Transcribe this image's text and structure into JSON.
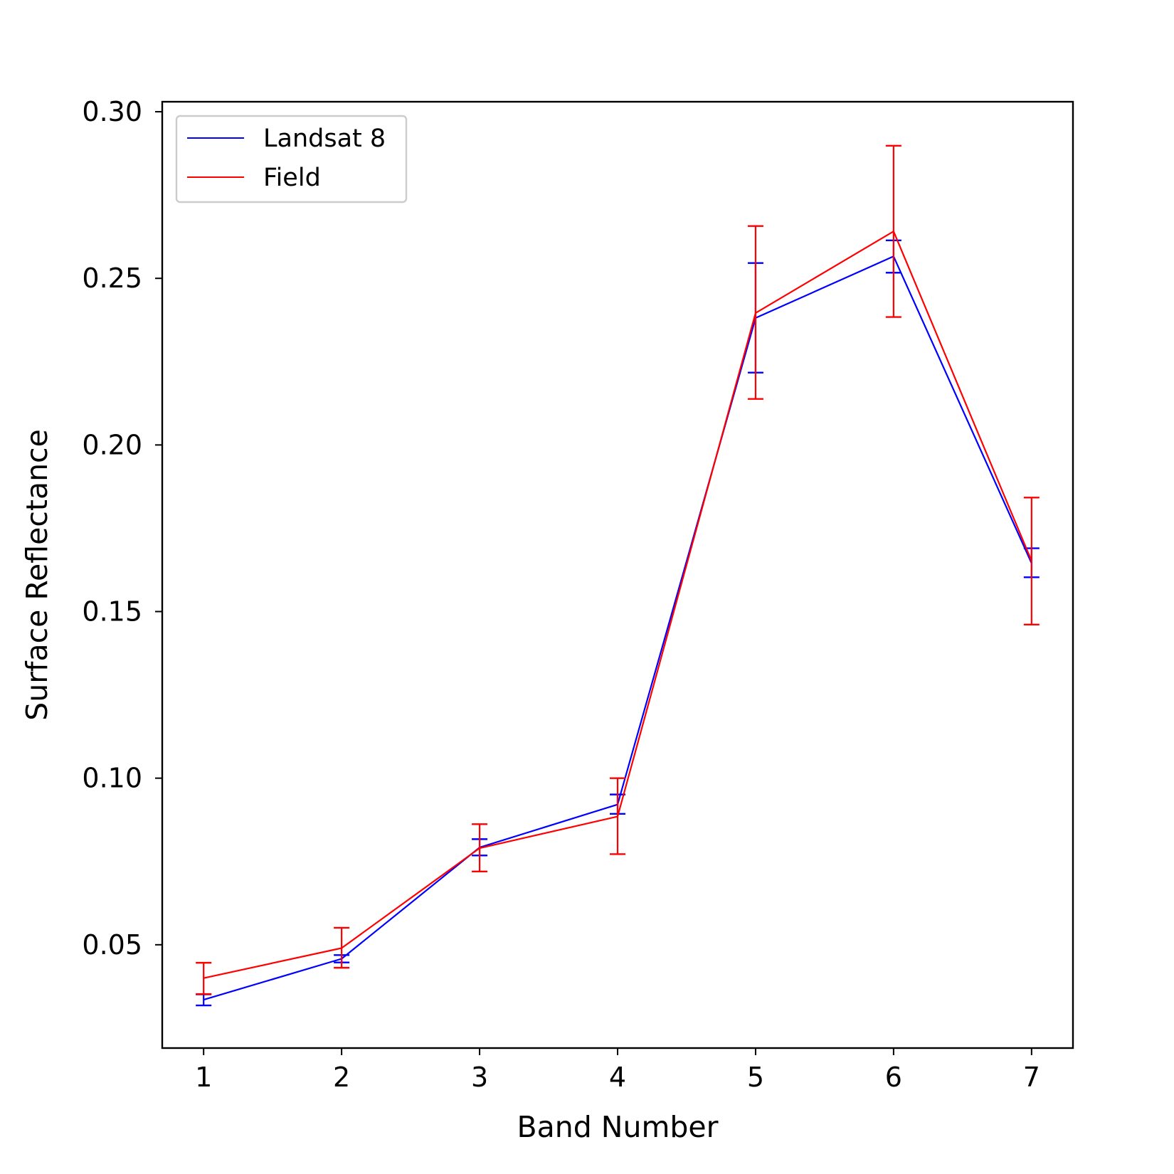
{
  "chart_data": {
    "type": "line",
    "xlabel": "Band Number",
    "ylabel": "Surface Reflectance",
    "xlim": [
      0.7,
      7.3
    ],
    "ylim": [
      0.019,
      0.303
    ],
    "x_ticks": [
      "1",
      "2",
      "3",
      "4",
      "5",
      "6",
      "7"
    ],
    "y_ticks": [
      "0.05",
      "0.10",
      "0.15",
      "0.20",
      "0.25",
      "0.30"
    ],
    "x": [
      1,
      2,
      3,
      4,
      5,
      6,
      7
    ],
    "grid": false,
    "legend_position": "upper-left",
    "series": [
      {
        "name": "Landsat 8",
        "color": "#0000ff",
        "values": [
          0.0335,
          0.0458,
          0.0792,
          0.0921,
          0.2381,
          0.2566,
          0.1645
        ],
        "err_lower": [
          0.0318,
          0.0447,
          0.0768,
          0.0893,
          0.2217,
          0.2517,
          0.1603
        ],
        "err_upper": [
          0.0351,
          0.0469,
          0.0817,
          0.0951,
          0.2546,
          0.2614,
          0.169
        ]
      },
      {
        "name": "Field",
        "color": "#ff0000",
        "values": [
          0.04,
          0.049,
          0.079,
          0.0885,
          0.2396,
          0.2641,
          0.1652
        ],
        "err_lower": [
          0.0352,
          0.0431,
          0.072,
          0.0772,
          0.2138,
          0.2384,
          0.1461
        ],
        "err_upper": [
          0.0446,
          0.0551,
          0.0862,
          0.1,
          0.2657,
          0.2898,
          0.1842
        ]
      }
    ]
  }
}
